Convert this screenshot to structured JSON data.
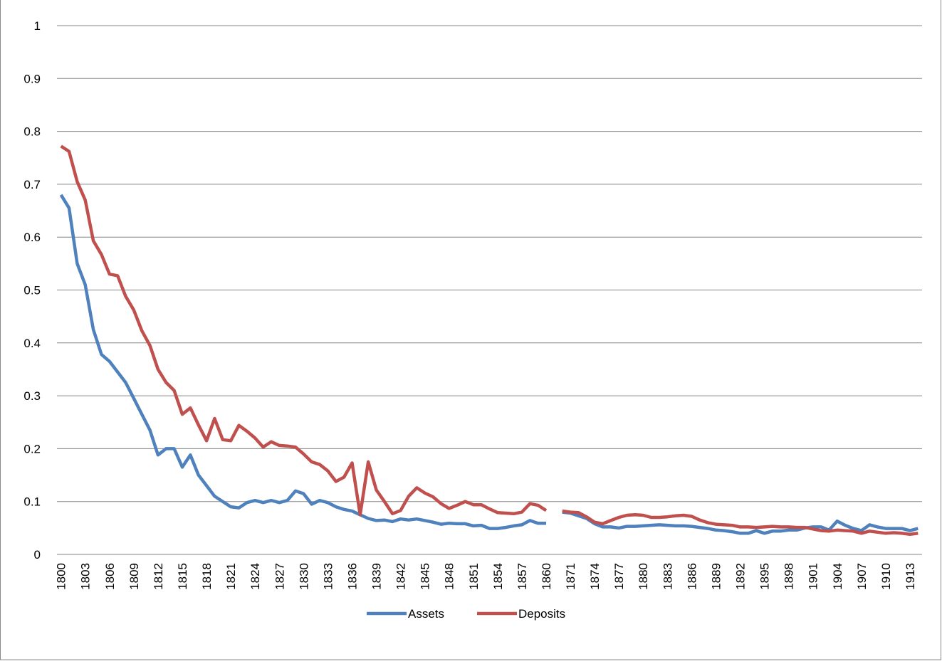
{
  "chart_data": {
    "type": "line",
    "categories": [
      "1800",
      "1801",
      "1802",
      "1803",
      "1804",
      "1805",
      "1806",
      "1807",
      "1808",
      "1809",
      "1810",
      "1811",
      "1812",
      "1813",
      "1814",
      "1815",
      "1816",
      "1817",
      "1818",
      "1819",
      "1820",
      "1821",
      "1822",
      "1823",
      "1824",
      "1825",
      "1826",
      "1827",
      "1828",
      "1829",
      "1830",
      "1831",
      "1832",
      "1833",
      "1834",
      "1835",
      "1836",
      "1837",
      "1838",
      "1839",
      "1840",
      "1841",
      "1842",
      "1843",
      "1844",
      "1845",
      "1846",
      "1847",
      "1848",
      "1849",
      "1850",
      "1851",
      "1852",
      "1853",
      "1854",
      "1855",
      "1856",
      "1857",
      "1858",
      "1859",
      "1860",
      "1869",
      "1870",
      "1871",
      "1872",
      "1873",
      "1874",
      "1875",
      "1876",
      "1877",
      "1878",
      "1879",
      "1880",
      "1881",
      "1882",
      "1883",
      "1884",
      "1885",
      "1886",
      "1887",
      "1888",
      "1889",
      "1890",
      "1891",
      "1892",
      "1893",
      "1894",
      "1895",
      "1896",
      "1897",
      "1898",
      "1899",
      "1900",
      "1901",
      "1902",
      "1903",
      "1904",
      "1905",
      "1906",
      "1907",
      "1908",
      "1909",
      "1910",
      "1911",
      "1912",
      "1913",
      "1914"
    ],
    "series": [
      {
        "name": "Assets",
        "color": "#4f81bd",
        "values": [
          0.68,
          0.655,
          0.55,
          0.51,
          0.425,
          0.378,
          0.365,
          0.345,
          0.325,
          0.295,
          0.265,
          0.235,
          0.188,
          0.2,
          0.2,
          0.165,
          0.188,
          0.15,
          0.13,
          0.11,
          0.1,
          0.09,
          0.088,
          0.098,
          0.102,
          0.098,
          0.102,
          0.098,
          0.102,
          0.12,
          0.115,
          0.095,
          0.102,
          0.098,
          0.09,
          0.085,
          0.082,
          0.075,
          0.068,
          0.064,
          0.065,
          0.062,
          0.067,
          0.065,
          0.067,
          0.064,
          0.061,
          0.057,
          0.059,
          0.058,
          0.058,
          0.054,
          0.055,
          0.049,
          0.049,
          0.051,
          0.054,
          0.056,
          0.064,
          0.059,
          0.059,
          null,
          0.08,
          0.078,
          0.073,
          0.068,
          0.058,
          0.052,
          0.052,
          0.05,
          0.053,
          0.053,
          0.054,
          0.055,
          0.056,
          0.055,
          0.054,
          0.054,
          0.053,
          0.051,
          0.049,
          0.046,
          0.045,
          0.043,
          0.04,
          0.04,
          0.045,
          0.04,
          0.044,
          0.044,
          0.046,
          0.046,
          0.05,
          0.052,
          0.052,
          0.046,
          0.063,
          0.055,
          0.049,
          0.045,
          0.056,
          0.052,
          0.049,
          0.049,
          0.049,
          0.045,
          0.049
        ]
      },
      {
        "name": "Deposits",
        "color": "#c0504d",
        "values": [
          0.772,
          0.762,
          0.705,
          0.67,
          0.593,
          0.567,
          0.53,
          0.527,
          0.488,
          0.462,
          0.423,
          0.395,
          0.35,
          0.325,
          0.31,
          0.265,
          0.277,
          0.245,
          0.215,
          0.257,
          0.217,
          0.215,
          0.244,
          0.233,
          0.22,
          0.203,
          0.213,
          0.206,
          0.205,
          0.203,
          0.19,
          0.175,
          0.17,
          0.158,
          0.138,
          0.146,
          0.173,
          0.075,
          0.175,
          0.122,
          0.1,
          0.077,
          0.083,
          0.11,
          0.126,
          0.116,
          0.109,
          0.096,
          0.087,
          0.093,
          0.1,
          0.094,
          0.094,
          0.086,
          0.079,
          0.078,
          0.077,
          0.08,
          0.096,
          0.093,
          0.083,
          null,
          0.082,
          0.08,
          0.079,
          0.071,
          0.061,
          0.058,
          0.064,
          0.07,
          0.074,
          0.075,
          0.074,
          0.07,
          0.07,
          0.071,
          0.073,
          0.074,
          0.072,
          0.065,
          0.06,
          0.057,
          0.056,
          0.055,
          0.052,
          0.052,
          0.051,
          0.052,
          0.053,
          0.052,
          0.052,
          0.051,
          0.051,
          0.048,
          0.045,
          0.044,
          0.046,
          0.045,
          0.044,
          0.04,
          0.044,
          0.042,
          0.04,
          0.041,
          0.04,
          0.038,
          0.04
        ]
      }
    ],
    "ylim": [
      0,
      1
    ],
    "yticks": [
      0,
      0.1,
      0.2,
      0.3,
      0.4,
      0.5,
      0.6,
      0.7,
      0.8,
      0.9,
      1
    ],
    "grid": true,
    "legend": "bottom"
  }
}
